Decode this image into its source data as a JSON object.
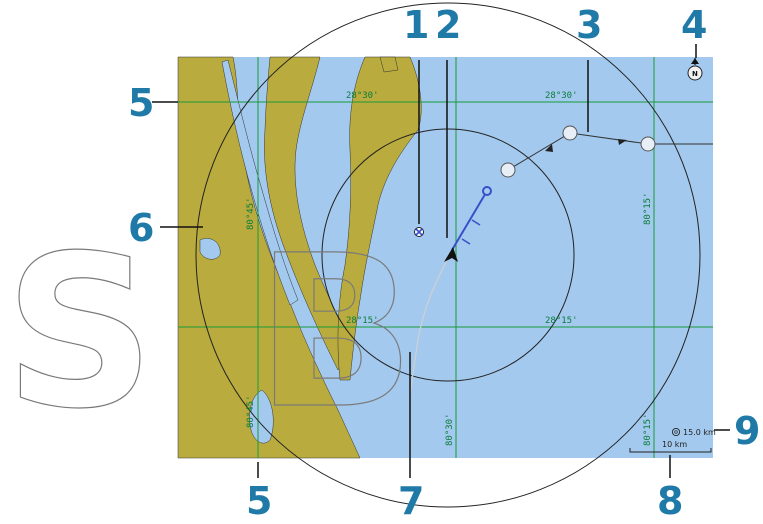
{
  "callouts": {
    "c1": "1",
    "c2": "2",
    "c3": "3",
    "c4": "4",
    "c5_top": "5",
    "c5_bottom": "5",
    "c6": "6",
    "c7": "7",
    "c8": "8",
    "c9": "9"
  },
  "grid_labels": {
    "lat_top_left": "28°30'",
    "lat_top_right": "28°30'",
    "lat_mid_left": "28°15'",
    "lat_mid_right": "28°15'",
    "lon_left_upper": "80°45'",
    "lon_left_lower": "80°45'",
    "lon_mid_lower": "80°30'",
    "lon_right_upper": "80°15'",
    "lon_right_lower": "80°15'"
  },
  "range_indicator": "15.0 km",
  "scale_bar": "10 km",
  "north_indicator": "N",
  "watermark": "SB",
  "colors": {
    "water": "#a3c9ee",
    "land": "#b9ab3d",
    "grid": "#1a9a3a",
    "route": "#3a4fc8",
    "callout": "#1f7aa8"
  }
}
